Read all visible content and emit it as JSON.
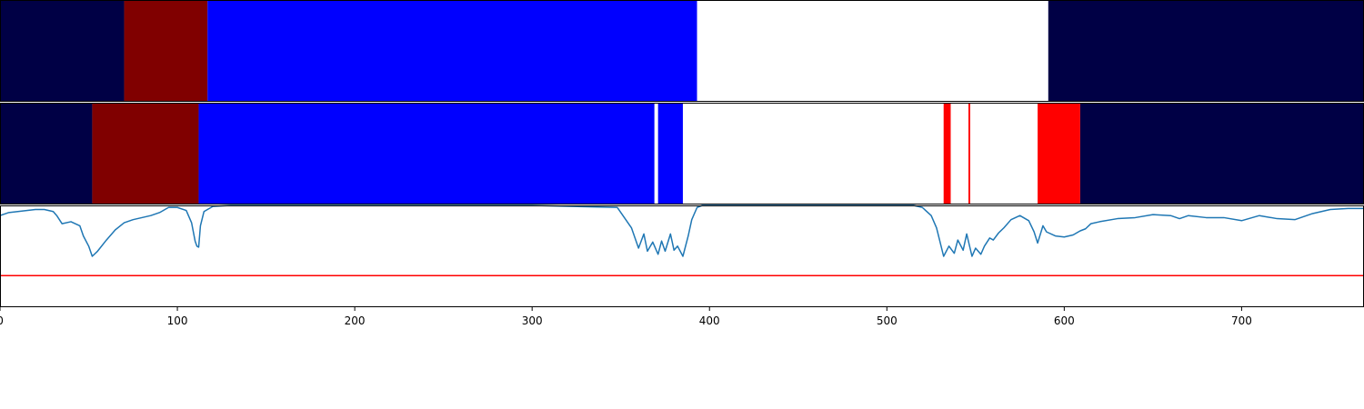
{
  "chart_data": [
    {
      "type": "segments",
      "xlim": [
        0,
        769
      ],
      "segments": [
        {
          "start": 0,
          "end": 70,
          "color": "#000045"
        },
        {
          "start": 70,
          "end": 117,
          "color": "#800000"
        },
        {
          "start": 117,
          "end": 393,
          "color": "#0000ff"
        },
        {
          "start": 393,
          "end": 591,
          "color": "#ffffff"
        },
        {
          "start": 591,
          "end": 769,
          "color": "#000045"
        }
      ]
    },
    {
      "type": "segments",
      "xlim": [
        0,
        769
      ],
      "segments": [
        {
          "start": 0,
          "end": 52,
          "color": "#000045"
        },
        {
          "start": 52,
          "end": 112,
          "color": "#800000"
        },
        {
          "start": 112,
          "end": 369,
          "color": "#0000ff"
        },
        {
          "start": 369,
          "end": 371,
          "color": "#ffffff"
        },
        {
          "start": 371,
          "end": 385,
          "color": "#0000ff"
        },
        {
          "start": 385,
          "end": 532,
          "color": "#ffffff"
        },
        {
          "start": 532,
          "end": 536,
          "color": "#ff0000"
        },
        {
          "start": 536,
          "end": 546,
          "color": "#ffffff"
        },
        {
          "start": 546,
          "end": 547,
          "color": "#ff0000"
        },
        {
          "start": 547,
          "end": 585,
          "color": "#ffffff"
        },
        {
          "start": 585,
          "end": 609,
          "color": "#ff0000"
        },
        {
          "start": 609,
          "end": 769,
          "color": "#000045"
        }
      ]
    },
    {
      "type": "line",
      "xlim": [
        0,
        769
      ],
      "ylim": [
        0,
        1
      ],
      "series_color": "#1f77b4",
      "threshold": {
        "value": 0.31,
        "color": "#ff0000"
      },
      "x": [
        0,
        5,
        10,
        15,
        20,
        25,
        30,
        32,
        35,
        40,
        45,
        47,
        50,
        52,
        55,
        60,
        65,
        70,
        75,
        80,
        85,
        90,
        95,
        100,
        105,
        108,
        110,
        111,
        112,
        113,
        115,
        120,
        130,
        200,
        300,
        348,
        352,
        356,
        360,
        363,
        365,
        368,
        371,
        373,
        375,
        378,
        380,
        382,
        385,
        388,
        390,
        393,
        396,
        400,
        450,
        515,
        520,
        525,
        528,
        532,
        535,
        538,
        540,
        543,
        545,
        548,
        550,
        553,
        555,
        558,
        560,
        563,
        566,
        570,
        575,
        580,
        583,
        585,
        588,
        590,
        595,
        600,
        605,
        609,
        612,
        615,
        620,
        630,
        640,
        650,
        660,
        665,
        670,
        680,
        690,
        700,
        710,
        720,
        730,
        740,
        750,
        760,
        769
      ],
      "y": [
        0.9,
        0.93,
        0.94,
        0.95,
        0.96,
        0.96,
        0.94,
        0.9,
        0.82,
        0.84,
        0.8,
        0.7,
        0.6,
        0.5,
        0.55,
        0.66,
        0.76,
        0.83,
        0.86,
        0.88,
        0.9,
        0.93,
        0.98,
        0.98,
        0.95,
        0.83,
        0.65,
        0.6,
        0.59,
        0.8,
        0.94,
        0.99,
        1.0,
        1.0,
        1.0,
        0.98,
        0.88,
        0.78,
        0.58,
        0.72,
        0.55,
        0.64,
        0.52,
        0.65,
        0.55,
        0.72,
        0.56,
        0.6,
        0.5,
        0.7,
        0.86,
        0.98,
        1.0,
        1.0,
        1.0,
        1.0,
        0.98,
        0.9,
        0.78,
        0.5,
        0.6,
        0.53,
        0.66,
        0.56,
        0.72,
        0.5,
        0.58,
        0.52,
        0.6,
        0.68,
        0.66,
        0.73,
        0.78,
        0.86,
        0.9,
        0.85,
        0.74,
        0.63,
        0.8,
        0.74,
        0.7,
        0.69,
        0.71,
        0.75,
        0.77,
        0.82,
        0.84,
        0.87,
        0.88,
        0.91,
        0.9,
        0.87,
        0.9,
        0.88,
        0.88,
        0.85,
        0.9,
        0.87,
        0.86,
        0.92,
        0.96,
        0.97,
        0.97
      ]
    }
  ],
  "x_axis": {
    "ticks": [
      0,
      100,
      200,
      300,
      400,
      500,
      600,
      700
    ],
    "tick_labels": [
      "0",
      "100",
      "200",
      "300",
      "400",
      "500",
      "600",
      "700"
    ]
  }
}
